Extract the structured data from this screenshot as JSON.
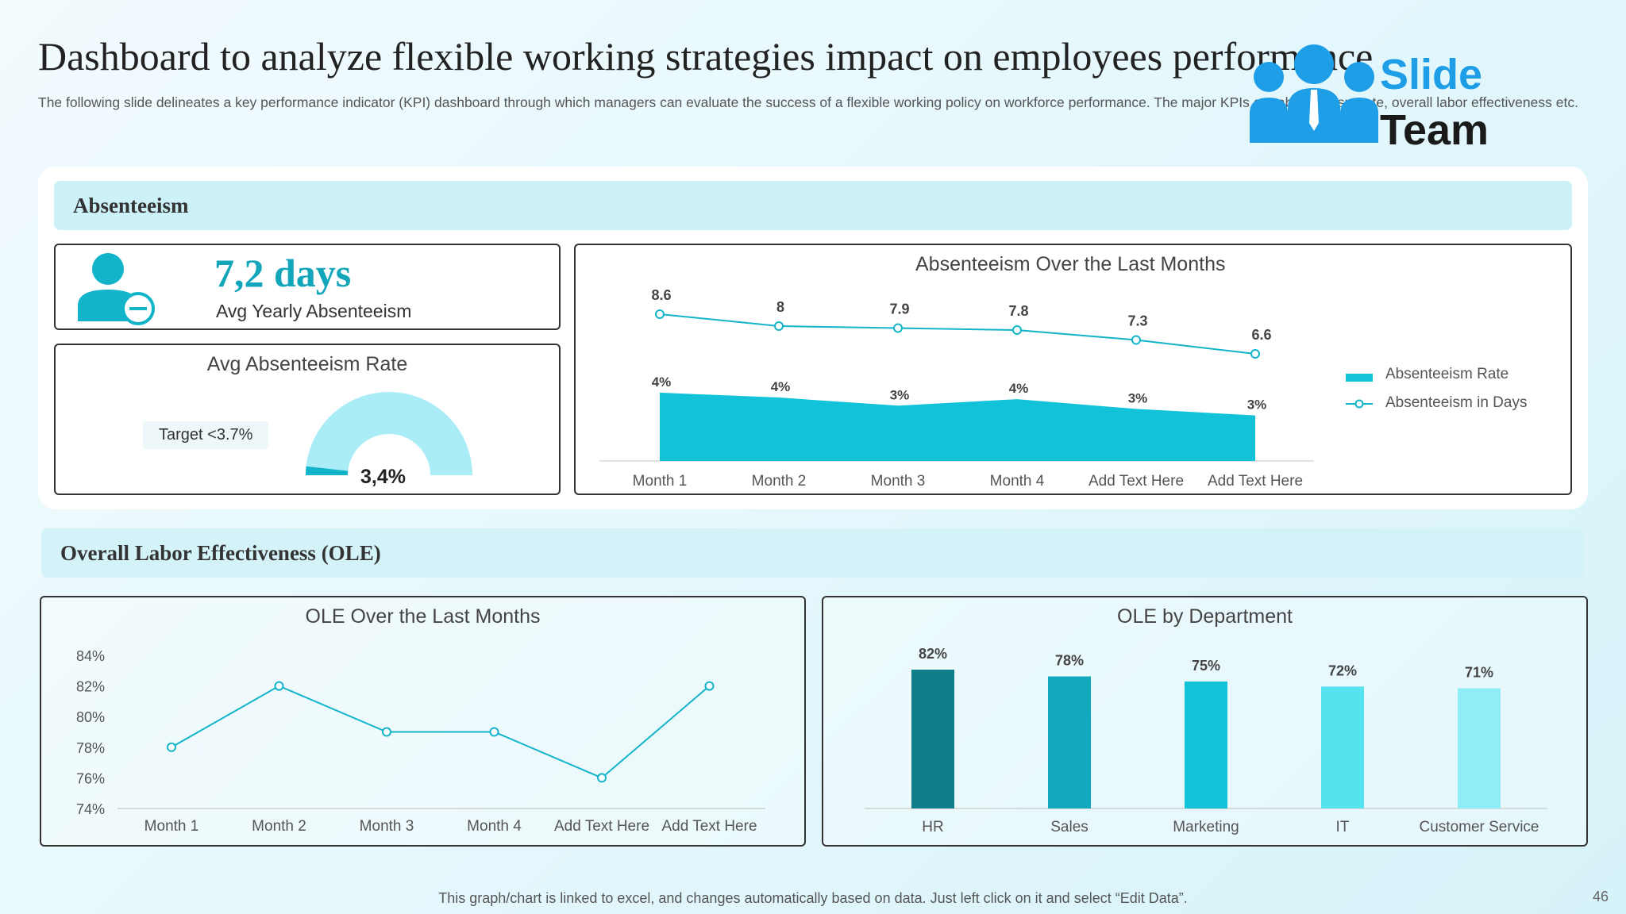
{
  "header": {
    "title": "Dashboard to analyze flexible working strategies impact on employees performance",
    "subtitle": "The following slide delineates a key performance indicator (KPI) dashboard through which managers can evaluate the success of a flexible working policy on workforce performance. The major KPIs are absenteeism rate, overall labor effectiveness etc."
  },
  "logo": {
    "line1": "Slide",
    "line2": "Team"
  },
  "absenteeism": {
    "section_title": "Absenteeism",
    "avg_yearly_value": "7,2 days",
    "avg_yearly_label": "Avg Yearly Absenteeism",
    "rate_title": "Avg Absenteeism Rate",
    "target_label": "Target  <3.7%",
    "gauge_value_label": "3,4%",
    "gauge_fraction": 0.034
  },
  "ole": {
    "section_title": "Overall Labor Effectiveness (OLE)"
  },
  "footer": {
    "note": "This graph/chart is linked to excel, and changes automatically based on data. Just left click on it and select “Edit Data”.",
    "page_number": "46"
  },
  "colors": {
    "accent": "#12c2d9",
    "dark_teal": "#0e7f8a",
    "light_teal": "#aaedf7"
  },
  "chart_data": [
    {
      "type": "line+area",
      "title": "Absenteeism Over the Last Months",
      "categories": [
        "Month 1",
        "Month 2",
        "Month 3",
        "Month 4",
        "Add Text Here",
        "Add Text Here"
      ],
      "series": [
        {
          "name": "Absenteeism Rate",
          "type": "area",
          "values": [
            4.2,
            3.9,
            3.4,
            3.8,
            3.2,
            2.8
          ],
          "labels": [
            "4%",
            "4%",
            "3%",
            "4%",
            "3%",
            "3%"
          ]
        },
        {
          "name": "Absenteeism in Days",
          "type": "line",
          "values": [
            8.6,
            8,
            7.9,
            7.8,
            7.3,
            6.6
          ],
          "labels": [
            "8.6",
            "8",
            "7.9",
            "7.8",
            "7.3",
            "6.6"
          ]
        }
      ],
      "legend": "right"
    },
    {
      "type": "line",
      "title": "OLE Over the Last Months",
      "categories": [
        "Month 1",
        "Month 2",
        "Month 3",
        "Month 4",
        "Add Text Here",
        "Add Text Here"
      ],
      "values": [
        78,
        82,
        79,
        79,
        76,
        82
      ],
      "ylim": [
        74,
        84
      ],
      "yticks": [
        "84%",
        "82%",
        "80%",
        "78%",
        "76%",
        "74%"
      ]
    },
    {
      "type": "bar",
      "title": "OLE by Department",
      "categories": [
        "HR",
        "Sales",
        "Marketing",
        "IT",
        "Customer Service"
      ],
      "values": [
        82,
        78,
        75,
        72,
        71
      ],
      "labels": [
        "82%",
        "78%",
        "75%",
        "72%",
        "71%"
      ],
      "colors": [
        "#0e7f8a",
        "#11a8bd",
        "#12c2d9",
        "#54e3ef",
        "#8fedf6"
      ]
    }
  ]
}
